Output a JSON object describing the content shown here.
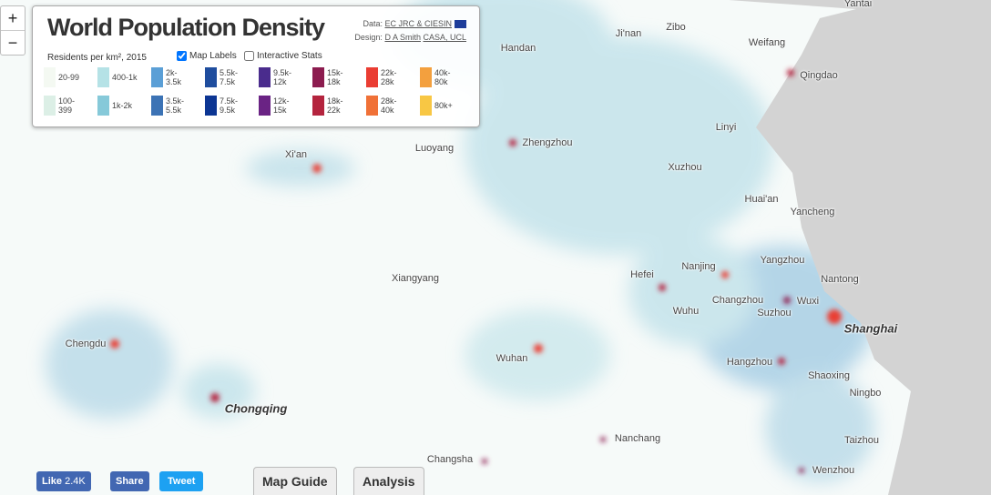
{
  "zoom": {
    "in": "+",
    "out": "−"
  },
  "panel": {
    "title": "World Population Density",
    "data_label": "Data:",
    "data_link": "EC JRC & CIESIN",
    "design_label": "Design:",
    "design_link_1": "D A Smith",
    "design_link_2": "CASA, UCL",
    "legend_title": "Residents per km², 2015",
    "checkboxes": [
      {
        "label": "Map Labels",
        "checked": true
      },
      {
        "label": "Interactive Stats",
        "checked": false
      }
    ],
    "legend": [
      {
        "label": "20-99",
        "color": "#f4f9f2"
      },
      {
        "label": "100-399",
        "color": "#dcefe6"
      },
      {
        "label": "400-1k",
        "color": "#b5e2e6"
      },
      {
        "label": "1k-2k",
        "color": "#86c9d9"
      },
      {
        "label": "2k-3.5k",
        "color": "#5b9fd6"
      },
      {
        "label": "3.5k-5.5k",
        "color": "#3c73b5"
      },
      {
        "label": "5.5k-7.5k",
        "color": "#1f4d9e"
      },
      {
        "label": "7.5k-9.5k",
        "color": "#0c3593"
      },
      {
        "label": "9.5k-12k",
        "color": "#4a2c8d"
      },
      {
        "label": "12k-15k",
        "color": "#6a2384"
      },
      {
        "label": "15k-18k",
        "color": "#8c1c4f"
      },
      {
        "label": "18k-22k",
        "color": "#b4243e"
      },
      {
        "label": "22k-28k",
        "color": "#ea3d33"
      },
      {
        "label": "28k-40k",
        "color": "#f07137"
      },
      {
        "label": "40k-80k",
        "color": "#f3a03e"
      },
      {
        "label": "80k+",
        "color": "#f8c744"
      }
    ]
  },
  "cities": [
    "Handan",
    "Ji'nan",
    "Zibo",
    "Weifang",
    "Qingdao",
    "Yantai",
    "Xi'an",
    "Luoyang",
    "Zhengzhou",
    "Linyi",
    "Xuzhou",
    "Huai'an",
    "Yancheng",
    "Xiangyang",
    "Hefei",
    "Nanjing",
    "Yangzhou",
    "Nantong",
    "Changzhou",
    "Wuxi",
    "Suzhou",
    "Shanghai",
    "Wuhu",
    "Chengdu",
    "Wuhan",
    "Hangzhou",
    "Shaoxing",
    "Ningbo",
    "Chongqing",
    "Nanchang",
    "Taizhou",
    "Changsha",
    "Wenzhou"
  ],
  "footer": {
    "like": "Like",
    "like_count": "2.4K",
    "share": "Share",
    "tweet": "Tweet",
    "map_guide": "Map Guide",
    "analysis": "Analysis"
  }
}
